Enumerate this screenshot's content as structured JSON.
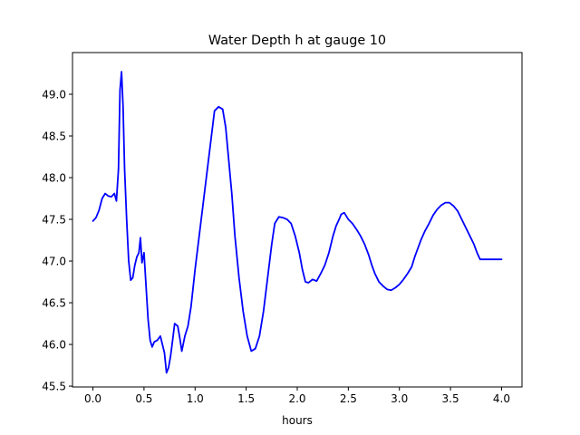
{
  "chart_data": {
    "type": "line",
    "title": "Water Depth h at gauge 10",
    "xlabel": "hours",
    "ylabel": "",
    "xlim": [
      -0.2,
      4.2
    ],
    "ylim": [
      45.49,
      49.5
    ],
    "grid": false,
    "legend": "none",
    "line_color": "#0000ff",
    "xticks": [
      0.0,
      0.5,
      1.0,
      1.5,
      2.0,
      2.5,
      3.0,
      3.5,
      4.0
    ],
    "xtick_labels": [
      "0.0",
      "0.5",
      "1.0",
      "1.5",
      "2.0",
      "2.5",
      "3.0",
      "3.5",
      "4.0"
    ],
    "yticks": [
      45.5,
      46.0,
      46.5,
      47.0,
      47.5,
      48.0,
      48.5,
      49.0
    ],
    "ytick_labels": [
      "45.5",
      "46.0",
      "46.5",
      "47.0",
      "47.5",
      "48.0",
      "48.5",
      "49.0"
    ],
    "series": [
      {
        "x": [
          0.0,
          0.03,
          0.06,
          0.09,
          0.12,
          0.15,
          0.18,
          0.21,
          0.23,
          0.25,
          0.265,
          0.28,
          0.295,
          0.31,
          0.33,
          0.35,
          0.37,
          0.39,
          0.41,
          0.43,
          0.45,
          0.465,
          0.48,
          0.5,
          0.52,
          0.54,
          0.56,
          0.58,
          0.6,
          0.63,
          0.66,
          0.7,
          0.72,
          0.74,
          0.76,
          0.78,
          0.8,
          0.83,
          0.85,
          0.87,
          0.9,
          0.93,
          0.96,
          1.0,
          1.03,
          1.07,
          1.11,
          1.15,
          1.19,
          1.23,
          1.27,
          1.3,
          1.33,
          1.36,
          1.39,
          1.43,
          1.47,
          1.51,
          1.55,
          1.59,
          1.63,
          1.67,
          1.7,
          1.72,
          1.75,
          1.78,
          1.82,
          1.86,
          1.9,
          1.94,
          1.98,
          2.02,
          2.05,
          2.08,
          2.11,
          2.15,
          2.19,
          2.23,
          2.27,
          2.31,
          2.35,
          2.38,
          2.41,
          2.43,
          2.46,
          2.5,
          2.54,
          2.58,
          2.62,
          2.66,
          2.7,
          2.73,
          2.76,
          2.8,
          2.84,
          2.88,
          2.92,
          2.96,
          3.0,
          3.04,
          3.08,
          3.12,
          3.15,
          3.18,
          3.21,
          3.25,
          3.29,
          3.33,
          3.37,
          3.41,
          3.45,
          3.49,
          3.53,
          3.57,
          3.61,
          3.65,
          3.69,
          3.73,
          3.76,
          3.79,
          3.82,
          3.86,
          3.9,
          3.94,
          3.98,
          4.0
        ],
        "y": [
          47.48,
          47.52,
          47.61,
          47.75,
          47.81,
          47.78,
          47.77,
          47.81,
          47.72,
          48.1,
          49.05,
          49.27,
          48.85,
          48.1,
          47.5,
          47.0,
          46.77,
          46.8,
          46.95,
          47.05,
          47.1,
          47.28,
          46.98,
          47.1,
          46.7,
          46.3,
          46.05,
          45.97,
          46.03,
          46.05,
          46.1,
          45.9,
          45.66,
          45.72,
          45.86,
          46.05,
          46.25,
          46.22,
          46.08,
          45.92,
          46.1,
          46.22,
          46.45,
          46.9,
          47.2,
          47.6,
          48.0,
          48.4,
          48.8,
          48.85,
          48.82,
          48.6,
          48.2,
          47.8,
          47.3,
          46.8,
          46.4,
          46.1,
          45.92,
          45.95,
          46.1,
          46.4,
          46.7,
          46.9,
          47.2,
          47.45,
          47.53,
          47.52,
          47.5,
          47.45,
          47.3,
          47.1,
          46.9,
          46.75,
          46.74,
          46.78,
          46.76,
          46.85,
          46.95,
          47.1,
          47.3,
          47.42,
          47.5,
          47.56,
          47.58,
          47.5,
          47.45,
          47.38,
          47.3,
          47.2,
          47.07,
          46.95,
          46.85,
          46.75,
          46.7,
          46.66,
          46.65,
          46.68,
          46.72,
          46.78,
          46.85,
          46.93,
          47.05,
          47.15,
          47.25,
          47.36,
          47.45,
          47.55,
          47.62,
          47.67,
          47.7,
          47.7,
          47.66,
          47.6,
          47.5,
          47.4,
          47.3,
          47.2,
          47.1,
          47.02,
          47.02,
          47.02,
          47.02,
          47.02,
          47.02,
          47.02
        ]
      }
    ]
  }
}
